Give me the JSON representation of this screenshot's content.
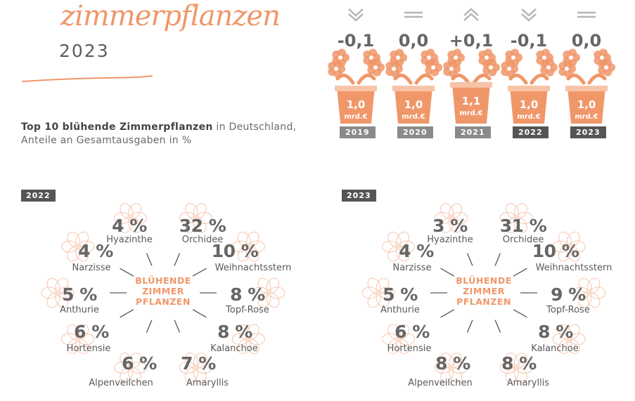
{
  "header": {
    "title": "zimmerpflanzen",
    "year": "2023",
    "subtitle_bold": "Top 10 blühende Zimmerpflanzen",
    "subtitle_rest": " in Deutschland,",
    "subtitle_line2": "Anteile an Gesamtausgaben in %"
  },
  "colors": {
    "accent": "#f0976a",
    "accent_light": "#f7c4a8",
    "dark": "#555555",
    "text": "#595959"
  },
  "chart_data": [
    {
      "type": "bar",
      "title": "",
      "categories": [
        "2019",
        "2020",
        "2021",
        "2022",
        "2023"
      ],
      "values": [
        1.0,
        1.0,
        1.1,
        1.0,
        1.0
      ],
      "value_labels": [
        "1,0",
        "1,0",
        "1,1",
        "1,0",
        "1,0"
      ],
      "unit_label": "mrd.€",
      "changes": [
        "-0,1",
        "0,0",
        "+0,1",
        "-0,1",
        "0,0"
      ],
      "trend_icons": [
        "chevron-down-icon",
        "equals-icon",
        "chevron-up-icon",
        "chevron-down-icon",
        "equals-icon"
      ]
    },
    {
      "type": "pie",
      "year": "2022",
      "center_label": [
        "BLÜHENDE",
        "ZIMMER",
        "PFLANZEN"
      ],
      "categories": [
        "Orchidee",
        "Weihnachtsstern",
        "Topf-Rose",
        "Kalanchoe",
        "Amaryllis",
        "Alpenveilchen",
        "Hortensie",
        "Anthurie",
        "Narzisse",
        "Hyazinthe"
      ],
      "values": [
        32,
        10,
        8,
        8,
        7,
        6,
        6,
        5,
        4,
        4
      ],
      "labels": [
        "32 %",
        "10 %",
        "8 %",
        "8 %",
        "7 %",
        "6 %",
        "6 %",
        "5 %",
        "4 %",
        "4 %"
      ]
    },
    {
      "type": "pie",
      "year": "2023",
      "center_label": [
        "BLÜHENDE",
        "ZIMMER",
        "PFLANZEN"
      ],
      "categories": [
        "Orchidee",
        "Weihnachtsstern",
        "Topf-Rose",
        "Kalanchoe",
        "Amaryllis",
        "Alpenveilchen",
        "Hortensie",
        "Anthurie",
        "Narzisse",
        "Hyazinthe"
      ],
      "values": [
        31,
        10,
        9,
        8,
        8,
        8,
        6,
        5,
        4,
        3
      ],
      "labels": [
        "31 %",
        "10 %",
        "9 %",
        "8 %",
        "8 %",
        "8 %",
        "6 %",
        "5 %",
        "4 %",
        "3 %"
      ]
    }
  ]
}
